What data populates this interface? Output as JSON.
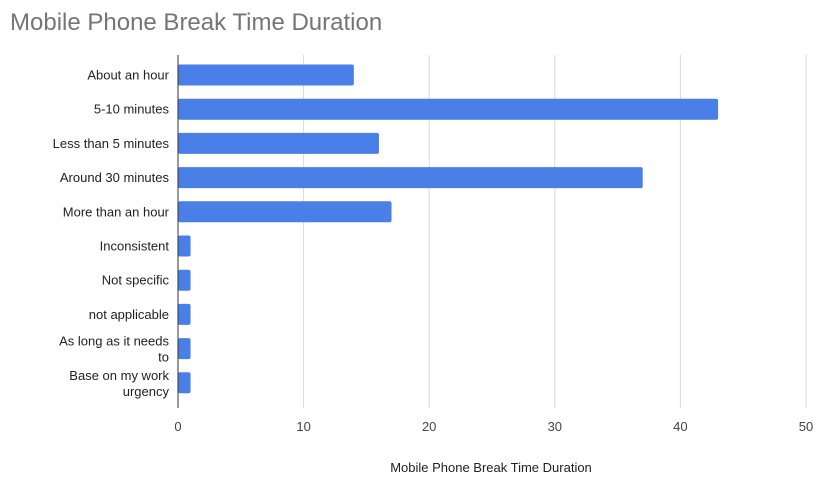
{
  "chart_data": {
    "type": "bar",
    "orientation": "horizontal",
    "title": "Mobile Phone Break Time Duration",
    "xlabel": "Mobile Phone Break Time Duration",
    "ylabel": "",
    "categories": [
      "About an hour",
      "5-10 minutes",
      "Less than 5 minutes",
      "Around 30 minutes",
      "More than an hour",
      "Inconsistent",
      "Not specific",
      "not applicable",
      "As long as it needs to",
      "Base on my work urgency"
    ],
    "values": [
      14,
      43,
      16,
      37,
      17,
      1,
      1,
      1,
      1,
      1
    ],
    "xlim": [
      0,
      50
    ],
    "xticks": [
      "0",
      "10",
      "20",
      "30",
      "40",
      "50"
    ],
    "grid": true,
    "legend": "none",
    "bar_color": "#4a7fe8",
    "grid_color": "#d9d9d9",
    "axis_color": "#333333"
  }
}
